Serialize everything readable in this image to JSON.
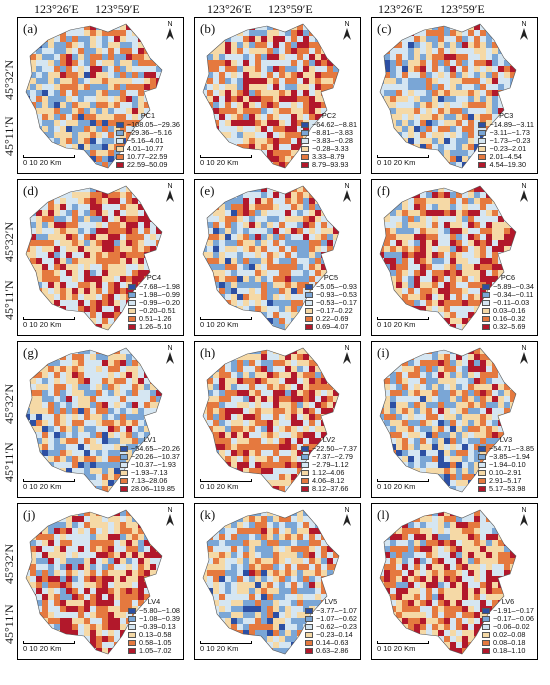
{
  "coords": {
    "lon_left": "123°26′E",
    "lon_right": "123°59′E",
    "lat_top": "45°32′N",
    "lat_bottom": "45°11′N"
  },
  "scale": "0  10  20 Km",
  "north": "N",
  "palette": [
    "#2c4fa3",
    "#7aa6d6",
    "#d5e6f2",
    "#f5d9a6",
    "#e5793f",
    "#b2182b"
  ],
  "panels": [
    {
      "label": "(a)",
      "title": "PC1",
      "ranges": [
        "−108.05–−29.36",
        "−29.36–−5.16",
        "−5.16–4.01",
        "4.01–10.77",
        "10.77–22.59",
        "22.59–50.09"
      ]
    },
    {
      "label": "(b)",
      "title": "PC2",
      "ranges": [
        "−64.62–−8.81",
        "−8.81–−3.83",
        "−3.83–−0.28",
        "−0.28–3.33",
        "3.33–8.79",
        "8.79–93.93"
      ]
    },
    {
      "label": "(c)",
      "title": "PC3",
      "ranges": [
        "−14.89–−3.11",
        "−3.11–−1.73",
        "−1.73–−0.23",
        "−0.23–2.01",
        "2.01–4.54",
        "4.54–19.30"
      ]
    },
    {
      "label": "(d)",
      "title": "PC4",
      "ranges": [
        "−7.68–−1.98",
        "−1.98–−0.99",
        "−0.99–−0.20",
        "−0.20–0.51",
        "0.51–1.26",
        "1.26–5.10"
      ]
    },
    {
      "label": "(e)",
      "title": "PC5",
      "ranges": [
        "−5.05–−0.93",
        "−0.93–−0.53",
        "−0.53–−0.17",
        "−0.17–0.22",
        "0.22–0.69",
        "0.69–4.07"
      ]
    },
    {
      "label": "(f)",
      "title": "PC6",
      "ranges": [
        "−5.89–−0.34",
        "−0.34–−0.11",
        "−0.11–0.03",
        "0.03–0.16",
        "0.16–0.32",
        "0.32–5.69"
      ]
    },
    {
      "label": "(g)",
      "title": "LV1",
      "ranges": [
        "−54.65–−20.26",
        "−20.26–−10.37",
        "−10.37–−1.93",
        "−1.93–7.13",
        "7.13–28.06",
        "28.06–119.85"
      ]
    },
    {
      "label": "(h)",
      "title": "LV2",
      "ranges": [
        "−22.50–−7.37",
        "−7.37–−2.79",
        "−2.79–1.12",
        "1.12–4.06",
        "4.06–8.12",
        "8.12–37.66"
      ]
    },
    {
      "label": "(i)",
      "title": "LV3",
      "ranges": [
        "−54.71–−3.85",
        "−3.85–−1.94",
        "−1.94–0.10",
        "0.10–2.91",
        "2.91–5.17",
        "5.17–53.98"
      ]
    },
    {
      "label": "(j)",
      "title": "LV4",
      "ranges": [
        "−5.80–−1.08",
        "−1.08–−0.39",
        "−0.39–0.13",
        "0.13–0.58",
        "0.58–1.05",
        "1.05–7.02"
      ]
    },
    {
      "label": "(k)",
      "title": "LV5",
      "ranges": [
        "−3.77–−1.07",
        "−1.07–−0.62",
        "−0.62–−0.23",
        "−0.23–0.14",
        "0.14–0.63",
        "0.63–2.86"
      ]
    },
    {
      "label": "(l)",
      "title": "LV6",
      "ranges": [
        "−1.91–−0.17",
        "−0.17–−0.06",
        "−0.06–0.02",
        "0.02–0.08",
        "0.08–0.18",
        "0.18–1.10"
      ]
    }
  ]
}
